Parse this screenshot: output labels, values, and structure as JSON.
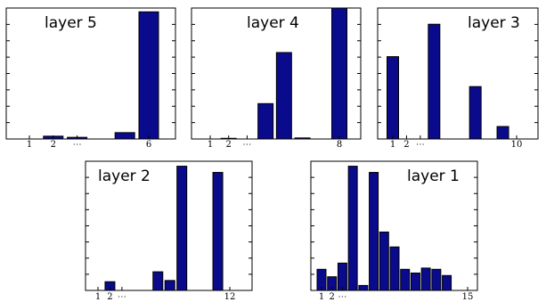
{
  "chart_data": [
    {
      "type": "bar",
      "title": "layer 5",
      "categories": [
        1,
        2,
        3,
        4,
        5,
        6
      ],
      "values": [
        0,
        2.2,
        1.3,
        0,
        5.0,
        100
      ],
      "tick_labels": [
        "1",
        "2",
        "⋯",
        "6"
      ],
      "ylim": [
        0,
        103
      ],
      "grid": false
    },
    {
      "type": "bar",
      "title": "layer 4",
      "categories": [
        1,
        2,
        3,
        4,
        5,
        6,
        7,
        8
      ],
      "values": [
        0,
        0.5,
        0,
        27,
        66,
        0.8,
        0,
        100
      ],
      "tick_labels": [
        "1",
        "2",
        "⋯",
        "8"
      ],
      "ylim": [
        0,
        100
      ],
      "grid": false
    },
    {
      "type": "bar",
      "title": "layer 3",
      "categories": [
        1,
        2,
        3,
        4,
        5,
        6,
        7,
        8,
        9,
        10
      ],
      "values": [
        66,
        0,
        0,
        92,
        0,
        0,
        42,
        0,
        10,
        0
      ],
      "tick_labels": [
        "1",
        "2",
        "⋯",
        "10"
      ],
      "ylim": [
        0,
        105
      ],
      "grid": false
    },
    {
      "type": "bar",
      "title": "layer 2",
      "categories": [
        1,
        2,
        3,
        4,
        5,
        6,
        7,
        8,
        9,
        10,
        11,
        12
      ],
      "values": [
        0,
        7,
        0,
        0,
        0,
        15,
        8,
        100,
        0,
        0,
        95,
        0
      ],
      "tick_labels": [
        "1",
        "2",
        "⋯",
        "12"
      ],
      "ylim": [
        0,
        104
      ],
      "grid": false
    },
    {
      "type": "bar",
      "title": "layer 1",
      "categories": [
        1,
        2,
        3,
        4,
        5,
        6,
        7,
        8,
        9,
        10,
        11,
        12,
        13,
        14,
        15
      ],
      "values": [
        17,
        11,
        22,
        100,
        4,
        95,
        47,
        35,
        17,
        14,
        18,
        17,
        12,
        0,
        0
      ],
      "tick_labels": [
        "1",
        "2",
        "⋯",
        "15"
      ],
      "ylim": [
        0,
        104
      ],
      "grid": false
    }
  ]
}
